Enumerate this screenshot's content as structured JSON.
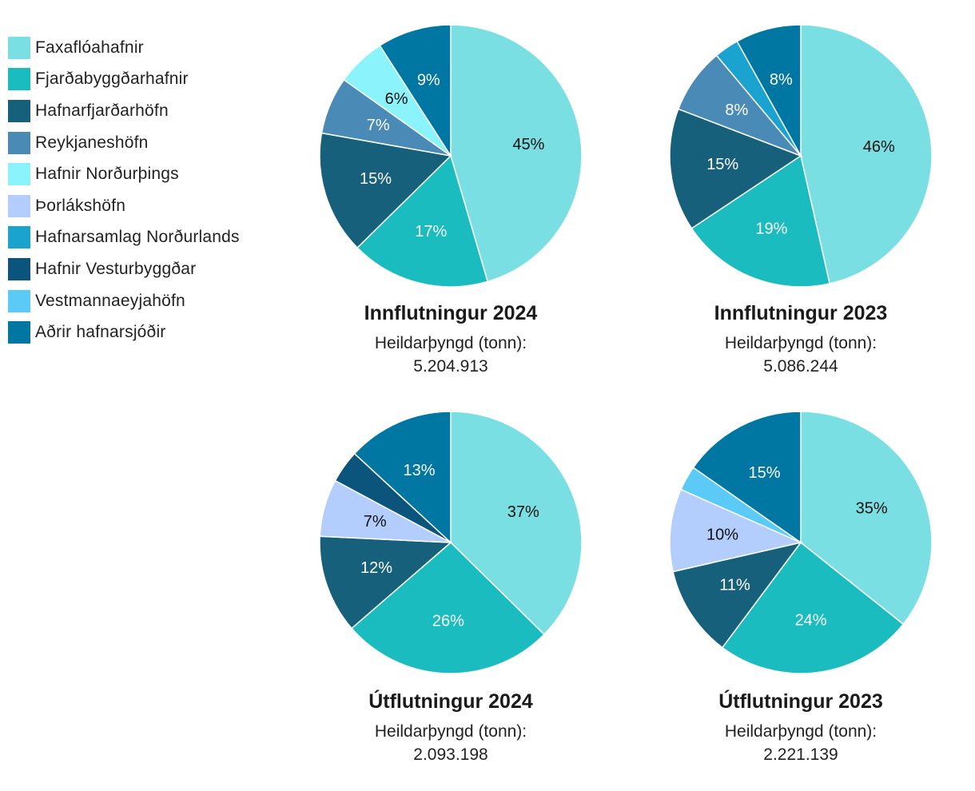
{
  "legend": [
    {
      "label": "Faxaflóahafnir",
      "color": "#79dfe2"
    },
    {
      "label": "Fjarðabyggðarhafnir",
      "color": "#1bbcbf"
    },
    {
      "label": "Hafnarfjarðarhöfn",
      "color": "#17607b"
    },
    {
      "label": "Reykjaneshöfn",
      "color": "#4a8ab6"
    },
    {
      "label": "Hafnir Norðurþings",
      "color": "#8af3fc"
    },
    {
      "label": "Þorlákshöfn",
      "color": "#b3cefc"
    },
    {
      "label": "Hafnarsamlag Norðurlands",
      "color": "#1ba3cf"
    },
    {
      "label": "Hafnir Vesturbyggðar",
      "color": "#0b547c"
    },
    {
      "label": "Vestmannaeyjahöfn",
      "color": "#5ccaf7"
    },
    {
      "label": "Aðrir hafnarsjóðir",
      "color": "#0077a3"
    }
  ],
  "chart_data": [
    {
      "type": "pie",
      "title": "Innflutningur 2024",
      "subtitle": "Heildarþyngd (tonn):",
      "total": "5.204.913",
      "slices": [
        {
          "category": "Faxaflóahafnir",
          "value": 45,
          "label": "45%"
        },
        {
          "category": "Fjarðabyggðarhafnir",
          "value": 17,
          "label": "17%"
        },
        {
          "category": "Hafnarfjarðarhöfn",
          "value": 15,
          "label": "15%"
        },
        {
          "category": "Reykjaneshöfn",
          "value": 7,
          "label": "7%"
        },
        {
          "category": "Hafnir Norðurþings",
          "value": 6,
          "label": "6%"
        },
        {
          "category": "Aðrir hafnarsjóðir",
          "value": 9,
          "label": "9%"
        }
      ]
    },
    {
      "type": "pie",
      "title": "Innflutningur 2023",
      "subtitle": "Heildarþyngd (tonn):",
      "total": "5.086.244",
      "slices": [
        {
          "category": "Faxaflóahafnir",
          "value": 46,
          "label": "46%"
        },
        {
          "category": "Fjarðabyggðarhafnir",
          "value": 19,
          "label": "19%"
        },
        {
          "category": "Hafnarfjarðarhöfn",
          "value": 15,
          "label": "15%"
        },
        {
          "category": "Reykjaneshöfn",
          "value": 8,
          "label": "8%"
        },
        {
          "category": "Hafnarsamlag Norðurlands",
          "value": 3,
          "label": ""
        },
        {
          "category": "Aðrir hafnarsjóðir",
          "value": 8,
          "label": "8%"
        }
      ]
    },
    {
      "type": "pie",
      "title": "Útflutningur 2024",
      "subtitle": "Heildarþyngd (tonn):",
      "total": "2.093.198",
      "slices": [
        {
          "category": "Faxaflóahafnir",
          "value": 37,
          "label": "37%"
        },
        {
          "category": "Fjarðabyggðarhafnir",
          "value": 26,
          "label": "26%"
        },
        {
          "category": "Hafnarfjarðarhöfn",
          "value": 12,
          "label": "12%"
        },
        {
          "category": "Þorlákshöfn",
          "value": 7,
          "label": "7%"
        },
        {
          "category": "Hafnir Vesturbyggðar",
          "value": 4,
          "label": ""
        },
        {
          "category": "Aðrir hafnarsjóðir",
          "value": 13,
          "label": "13%"
        }
      ]
    },
    {
      "type": "pie",
      "title": "Útflutningur 2023",
      "subtitle": "Heildarþyngd (tonn):",
      "total": "2.221.139",
      "slices": [
        {
          "category": "Faxaflóahafnir",
          "value": 35,
          "label": "35%"
        },
        {
          "category": "Fjarðabyggðarhafnir",
          "value": 24,
          "label": "24%"
        },
        {
          "category": "Hafnarfjarðarhöfn",
          "value": 11,
          "label": "11%"
        },
        {
          "category": "Þorlákshöfn",
          "value": 10,
          "label": "10%"
        },
        {
          "category": "Vestmannaeyjahöfn",
          "value": 3,
          "label": ""
        },
        {
          "category": "Aðrir hafnarsjóðir",
          "value": 15,
          "label": "15%"
        }
      ]
    }
  ]
}
